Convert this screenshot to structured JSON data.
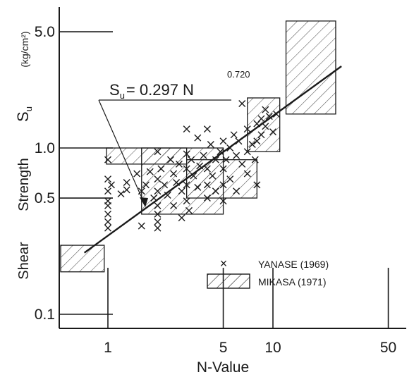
{
  "colors": {
    "ink": "#1a1a1a",
    "paper": "#ffffff"
  },
  "chart_data": {
    "type": "scatter",
    "x_scale": "log",
    "y_scale": "log",
    "xlim": [
      0.5,
      60
    ],
    "ylim": [
      0.08,
      7.5
    ],
    "xticks": [
      1,
      5,
      10,
      50
    ],
    "yticks": [
      0.1,
      0.5,
      1.0,
      5.0
    ],
    "xtick_labels": [
      "1",
      "5",
      "10",
      "50"
    ],
    "ytick_labels": [
      "0.1",
      "0.5",
      "1.0",
      "5.0"
    ],
    "xlabel": "N-Value",
    "ylabel_words": [
      "Shear",
      "Strength"
    ],
    "ylabel_symbol": "S",
    "ylabel_subscript": "u",
    "ylabel_unit": "(kg/cm²)",
    "equation": {
      "lhs": "S",
      "lhs_subscript": "u",
      "rhs": "= 0.297 N",
      "exponent": "0.720",
      "coefficient": 0.297,
      "power": 0.72,
      "x_range": [
        0.72,
        26
      ]
    },
    "legend": {
      "position": "bottom-right",
      "entries": [
        {
          "marker": "x",
          "label": "YANASE (1969)"
        },
        {
          "marker": "hatched-box",
          "label": "MIKASA (1971)"
        }
      ]
    },
    "mikasa_boxes": [
      {
        "x": [
          0.5,
          0.95
        ],
        "y": [
          0.18,
          0.26
        ]
      },
      {
        "x": [
          0.98,
          3.0
        ],
        "y": [
          0.8,
          1.0
        ]
      },
      {
        "x": [
          1.6,
          5.0
        ],
        "y": [
          0.4,
          1.0
        ]
      },
      {
        "x": [
          3.0,
          8.0
        ],
        "y": [
          0.5,
          0.85
        ]
      },
      {
        "x": [
          7.0,
          11.0
        ],
        "y": [
          0.95,
          2.0
        ]
      },
      {
        "x": [
          12.0,
          24.0
        ],
        "y": [
          1.6,
          5.8
        ]
      }
    ],
    "yanase_points": [
      [
        1.0,
        0.65
      ],
      [
        1.0,
        0.85
      ],
      [
        1.0,
        0.55
      ],
      [
        1.0,
        0.48
      ],
      [
        1.0,
        0.45
      ],
      [
        1.0,
        0.4
      ],
      [
        1.0,
        0.36
      ],
      [
        1.0,
        0.33
      ],
      [
        1.05,
        0.6
      ],
      [
        1.2,
        0.53
      ],
      [
        1.3,
        0.62
      ],
      [
        1.3,
        0.56
      ],
      [
        1.5,
        0.7
      ],
      [
        1.6,
        0.55
      ],
      [
        1.6,
        0.34
      ],
      [
        1.7,
        0.6
      ],
      [
        1.8,
        0.72
      ],
      [
        1.9,
        0.5
      ],
      [
        2.0,
        0.95
      ],
      [
        2.0,
        0.65
      ],
      [
        2.0,
        0.55
      ],
      [
        2.0,
        0.45
      ],
      [
        2.0,
        0.4
      ],
      [
        2.0,
        0.36
      ],
      [
        2.0,
        0.33
      ],
      [
        2.1,
        0.75
      ],
      [
        2.2,
        0.6
      ],
      [
        2.3,
        0.52
      ],
      [
        2.4,
        0.85
      ],
      [
        2.5,
        0.7
      ],
      [
        2.5,
        0.45
      ],
      [
        2.6,
        0.62
      ],
      [
        2.7,
        0.8
      ],
      [
        2.8,
        0.55
      ],
      [
        2.8,
        0.38
      ],
      [
        3.0,
        1.3
      ],
      [
        3.0,
        0.92
      ],
      [
        3.0,
        0.75
      ],
      [
        3.0,
        0.6
      ],
      [
        3.0,
        0.48
      ],
      [
        3.1,
        0.42
      ],
      [
        3.2,
        0.85
      ],
      [
        3.3,
        0.68
      ],
      [
        3.5,
        1.15
      ],
      [
        3.5,
        0.58
      ],
      [
        3.6,
        0.78
      ],
      [
        3.8,
        0.9
      ],
      [
        4.0,
        1.3
      ],
      [
        4.0,
        0.75
      ],
      [
        4.0,
        0.6
      ],
      [
        4.0,
        0.5
      ],
      [
        4.2,
        1.05
      ],
      [
        4.3,
        0.68
      ],
      [
        4.5,
        0.85
      ],
      [
        4.5,
        0.55
      ],
      [
        4.8,
        0.95
      ],
      [
        5.0,
        1.1
      ],
      [
        5.0,
        0.75
      ],
      [
        5.0,
        0.6
      ],
      [
        5.0,
        0.48
      ],
      [
        5.2,
        0.85
      ],
      [
        5.5,
        1.0
      ],
      [
        5.5,
        0.65
      ],
      [
        5.8,
        1.2
      ],
      [
        6.0,
        0.9
      ],
      [
        6.0,
        0.55
      ],
      [
        6.2,
        1.1
      ],
      [
        6.5,
        0.8
      ],
      [
        6.5,
        1.85
      ],
      [
        7.0,
        1.3
      ],
      [
        7.0,
        0.95
      ],
      [
        7.0,
        0.7
      ],
      [
        7.5,
        1.05
      ],
      [
        7.8,
        0.85
      ],
      [
        8.0,
        1.4
      ],
      [
        8.0,
        1.1
      ],
      [
        8.0,
        0.6
      ],
      [
        8.5,
        1.5
      ],
      [
        8.5,
        1.2
      ],
      [
        9.0,
        1.7
      ],
      [
        9.0,
        1.35
      ],
      [
        9.5,
        1.55
      ],
      [
        10.0,
        1.25
      ],
      [
        10.5,
        1.6
      ]
    ]
  }
}
